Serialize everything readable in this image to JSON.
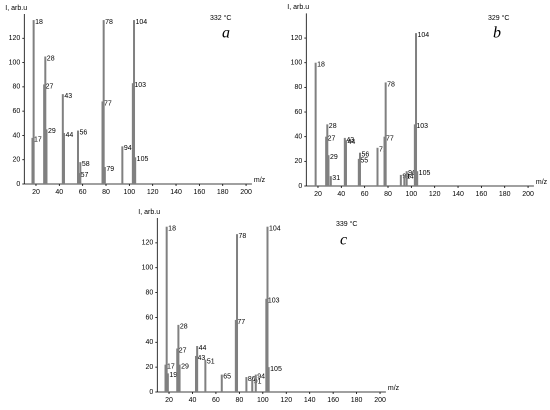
{
  "chart_data": [
    {
      "type": "bar",
      "ylabel": "I, arb.u",
      "xlabel": "m/z",
      "title": "332 °C",
      "panel_label": "a",
      "color": "#808080",
      "x": [
        17,
        18,
        27,
        28,
        29,
        43,
        44,
        56,
        57,
        58,
        77,
        78,
        79,
        94,
        103,
        104,
        105
      ],
      "values": [
        38,
        135,
        82,
        105,
        45,
        74,
        42,
        44,
        9,
        18,
        68,
        135,
        14,
        31,
        83,
        135,
        22
      ],
      "xlim": [
        10,
        205
      ],
      "ylim": [
        0,
        140
      ],
      "xticks": [
        20,
        40,
        60,
        80,
        100,
        120,
        140,
        160,
        180,
        200
      ],
      "yticks": [
        0,
        20,
        40,
        60,
        80,
        100,
        120
      ]
    },
    {
      "type": "bar",
      "ylabel": "I, arb.u",
      "xlabel": "m/z",
      "title": "329 °C",
      "panel_label": "b",
      "color": "#808080",
      "x": [
        18,
        27,
        28,
        29,
        31,
        43,
        44,
        55,
        56,
        71,
        77,
        78,
        91,
        94,
        96,
        103,
        104,
        105
      ],
      "values": [
        100,
        40,
        50,
        25,
        8,
        39,
        37,
        22,
        27,
        31,
        40,
        84,
        9,
        9,
        12,
        50,
        124,
        12
      ],
      "xlim": [
        10,
        205
      ],
      "ylim": [
        0,
        140
      ],
      "xticks": [
        20,
        40,
        60,
        80,
        100,
        120,
        140,
        160,
        180,
        200
      ],
      "yticks": [
        0,
        20,
        40,
        60,
        80,
        100,
        120
      ]
    },
    {
      "type": "bar",
      "ylabel": "I, arb.u",
      "xlabel": "m/z",
      "title": "339 °C",
      "panel_label": "c",
      "color": "#808080",
      "x": [
        17,
        18,
        19,
        27,
        28,
        29,
        43,
        44,
        51,
        65,
        77,
        78,
        86,
        91,
        94,
        103,
        104,
        105
      ],
      "values": [
        22,
        133,
        15,
        35,
        54,
        22,
        29,
        37,
        26,
        14,
        58,
        127,
        12,
        10,
        14,
        75,
        133,
        20
      ],
      "xlim": [
        10,
        205
      ],
      "ylim": [
        0,
        140
      ],
      "xticks": [
        20,
        40,
        60,
        80,
        100,
        120,
        140,
        160,
        180,
        200
      ],
      "yticks": [
        0,
        20,
        40,
        60,
        80,
        100,
        120
      ]
    }
  ]
}
